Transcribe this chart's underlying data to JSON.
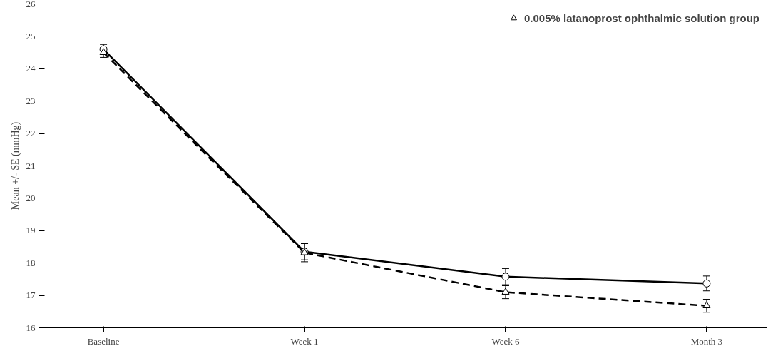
{
  "chart_data": {
    "type": "line",
    "ylabel": "Mean +/- SE (mmHg)",
    "categories": [
      "Baseline",
      "Week 1",
      "Week 6",
      "Month 3"
    ],
    "ylim": [
      16,
      26
    ],
    "yticks": [
      16,
      17,
      18,
      19,
      20,
      21,
      22,
      23,
      24,
      25,
      26
    ],
    "grid": false,
    "legend": "top right",
    "series": [
      {
        "color": "#000000",
        "marker": "circle",
        "line_style": "solid",
        "values": [
          24.6,
          18.35,
          17.58,
          17.37
        ],
        "errors": [
          0.15,
          0.25,
          0.25,
          0.23
        ]
      },
      {
        "name": "0.005% latanoprost ophthalmic solution group",
        "color": "#000000",
        "marker": "triangle",
        "line_style": "dashed",
        "values": [
          24.5,
          18.32,
          17.1,
          16.68
        ],
        "errors": [
          0.15,
          0.28,
          0.2,
          0.2
        ]
      }
    ]
  }
}
